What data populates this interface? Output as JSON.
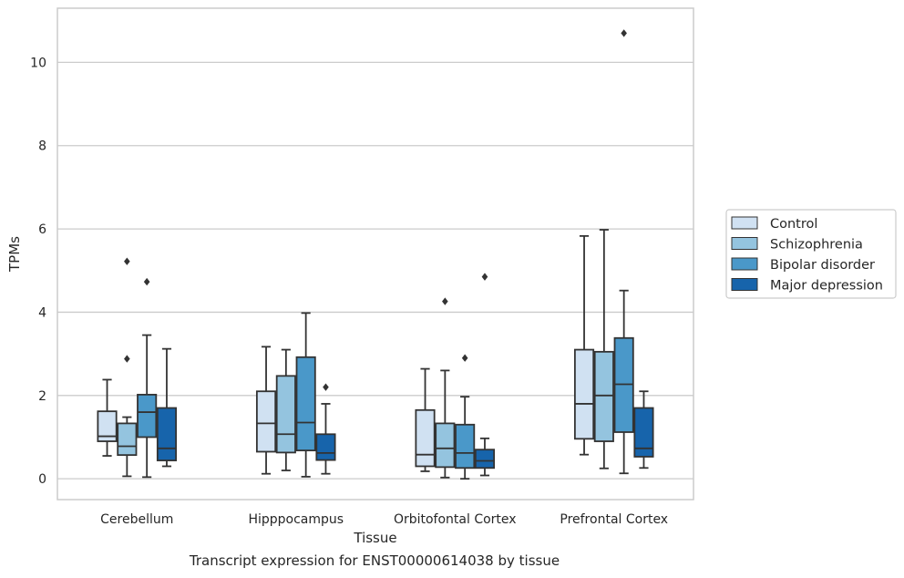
{
  "chart_data": {
    "type": "boxplot",
    "xlabel": "Tissue",
    "ylabel": "TPMs",
    "caption": "Transcript expression for ENST00000614038 by tissue",
    "ylim": [
      -0.5,
      11.3
    ],
    "yticks": [
      0,
      2,
      4,
      6,
      8,
      10
    ],
    "grid": "horizontal",
    "legend_position": "right",
    "categories": [
      "Cerebellum",
      "Hipppocampus",
      "Orbitofontal Cortex",
      "Prefrontal Cortex"
    ],
    "series": [
      {
        "name": "Control",
        "color": "#d0e1f2",
        "boxes": [
          {
            "whislo": 0.55,
            "q1": 0.9,
            "med": 1.02,
            "q3": 1.62,
            "whishi": 2.38,
            "fliers": []
          },
          {
            "whislo": 0.12,
            "q1": 0.65,
            "med": 1.33,
            "q3": 2.1,
            "whishi": 3.17,
            "fliers": []
          },
          {
            "whislo": 0.18,
            "q1": 0.3,
            "med": 0.58,
            "q3": 1.65,
            "whishi": 2.64,
            "fliers": []
          },
          {
            "whislo": 0.58,
            "q1": 0.96,
            "med": 1.8,
            "q3": 3.1,
            "whishi": 5.83,
            "fliers": []
          }
        ]
      },
      {
        "name": "Schizophrenia",
        "color": "#94c4df",
        "boxes": [
          {
            "whislo": 0.06,
            "q1": 0.57,
            "med": 0.78,
            "q3": 1.33,
            "whishi": 1.48,
            "fliers": [
              2.88,
              5.22
            ]
          },
          {
            "whislo": 0.2,
            "q1": 0.63,
            "med": 1.07,
            "q3": 2.47,
            "whishi": 3.1,
            "fliers": []
          },
          {
            "whislo": 0.03,
            "q1": 0.28,
            "med": 0.73,
            "q3": 1.33,
            "whishi": 2.6,
            "fliers": [
              4.26
            ]
          },
          {
            "whislo": 0.25,
            "q1": 0.9,
            "med": 2.0,
            "q3": 3.05,
            "whishi": 5.98,
            "fliers": []
          }
        ]
      },
      {
        "name": "Bipolar disorder",
        "color": "#4a98c9",
        "boxes": [
          {
            "whislo": 0.04,
            "q1": 1.0,
            "med": 1.6,
            "q3": 2.02,
            "whishi": 3.45,
            "fliers": [
              4.73
            ]
          },
          {
            "whislo": 0.05,
            "q1": 0.68,
            "med": 1.35,
            "q3": 2.92,
            "whishi": 3.98,
            "fliers": []
          },
          {
            "whislo": 0.0,
            "q1": 0.26,
            "med": 0.62,
            "q3": 1.3,
            "whishi": 1.97,
            "fliers": [
              2.9
            ]
          },
          {
            "whislo": 0.13,
            "q1": 1.12,
            "med": 2.27,
            "q3": 3.38,
            "whishi": 4.52,
            "fliers": [
              10.7
            ]
          }
        ]
      },
      {
        "name": "Major depression",
        "color": "#1764ab",
        "boxes": [
          {
            "whislo": 0.3,
            "q1": 0.44,
            "med": 0.73,
            "q3": 1.7,
            "whishi": 3.12,
            "fliers": []
          },
          {
            "whislo": 0.12,
            "q1": 0.45,
            "med": 0.62,
            "q3": 1.07,
            "whishi": 1.8,
            "fliers": [
              2.2
            ]
          },
          {
            "whislo": 0.08,
            "q1": 0.26,
            "med": 0.43,
            "q3": 0.7,
            "whishi": 0.97,
            "fliers": [
              4.85
            ]
          },
          {
            "whislo": 0.26,
            "q1": 0.53,
            "med": 0.73,
            "q3": 1.7,
            "whishi": 2.1,
            "fliers": []
          }
        ]
      }
    ]
  }
}
